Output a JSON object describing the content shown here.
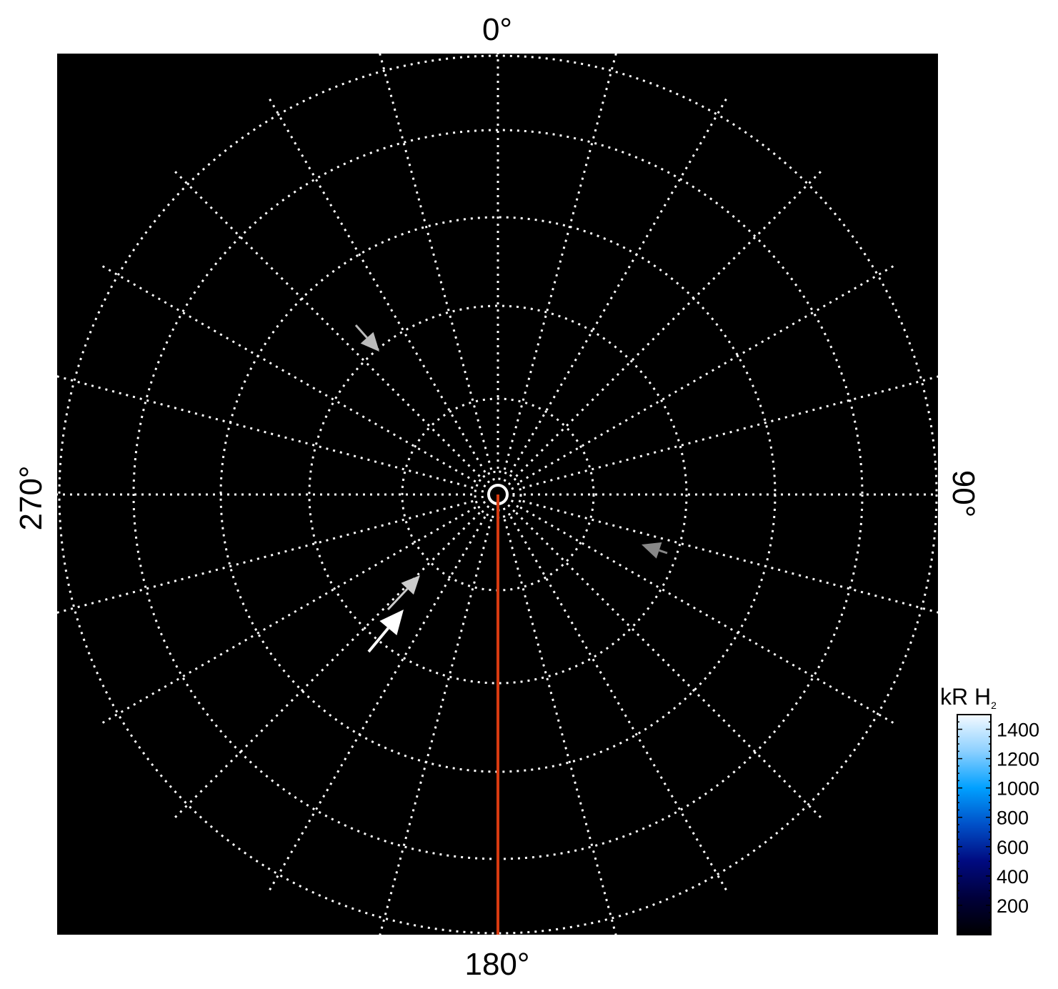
{
  "chart_data": {
    "type": "heatmap",
    "projection": "polar",
    "title": "",
    "angle_labels": {
      "top": "0°",
      "right": "90°",
      "bottom": "180°",
      "left": "270°"
    },
    "spoke_step_deg": 15,
    "ring_count": 5,
    "grid": true,
    "background_color": "#000000",
    "grid_color": "#ffffff",
    "reference_line": {
      "angle_deg": 180,
      "color": "#d83a10"
    },
    "arrows": [
      {
        "shade": "#bbbbbb"
      },
      {
        "shade": "#888888"
      },
      {
        "shade": "#cccccc"
      },
      {
        "shade": "#ffffff"
      }
    ],
    "colorbar": {
      "label": "kR H",
      "label_subscript": "2",
      "range": [
        0,
        1500
      ],
      "ticks": [
        200,
        400,
        600,
        800,
        1000,
        1200,
        1400
      ],
      "tick_labels": [
        "200",
        "400",
        "600",
        "800",
        "1000",
        "1200",
        "1400"
      ],
      "colormap": [
        "#000000",
        "#00003a",
        "#000a80",
        "#0050c8",
        "#00a0ff",
        "#8cd0ff",
        "#f4faff"
      ],
      "placement": "bottom-right"
    }
  }
}
